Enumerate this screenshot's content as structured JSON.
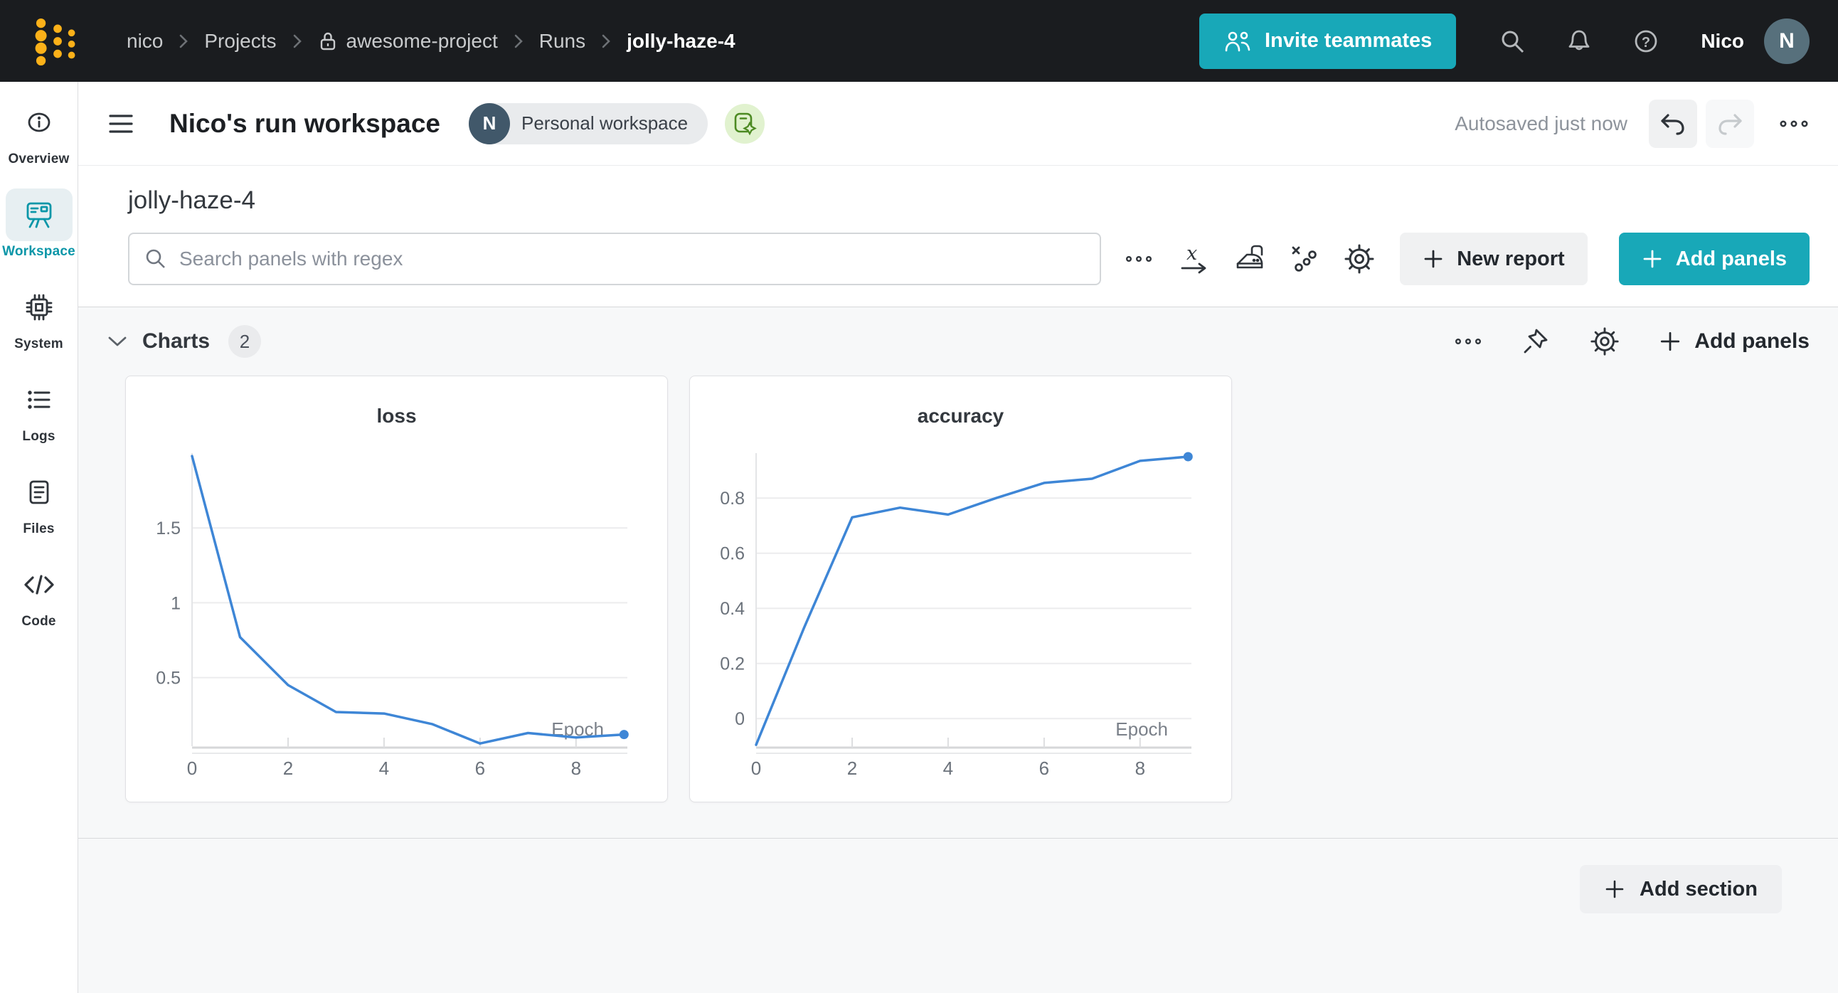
{
  "topbar": {
    "breadcrumb": {
      "items": [
        "nico",
        "Projects",
        "awesome-project",
        "Runs",
        "jolly-haze-4"
      ]
    },
    "invite_button": "Invite teammates",
    "username": "Nico",
    "avatar_initial": "N"
  },
  "sidebar": {
    "items": [
      {
        "label": "Overview"
      },
      {
        "label": "Workspace"
      },
      {
        "label": "System"
      },
      {
        "label": "Logs"
      },
      {
        "label": "Files"
      },
      {
        "label": "Code"
      }
    ]
  },
  "header": {
    "title": "Nico's run workspace",
    "workspace_badge": {
      "initial": "N",
      "label": "Personal workspace"
    },
    "autosave_status": "Autosaved just now"
  },
  "run_page": {
    "run_title": "jolly-haze-4",
    "search_placeholder": "Search panels with regex",
    "new_report_button": "New report",
    "add_panels_button": "Add panels"
  },
  "charts_section": {
    "label": "Charts",
    "count": "2",
    "add_panels_button": "Add panels"
  },
  "bottom": {
    "add_section_button": "Add section"
  },
  "colors": {
    "topbar_bg": "#1a1c1f",
    "teal": "#18a8b8",
    "active_teal": "#0b96a8",
    "line_blue": "#3e86d6",
    "logo_yellow": "#fcb119",
    "section_bg": "#f7f8f9"
  },
  "chart_data": [
    {
      "type": "line",
      "title": "loss",
      "xlabel": "Epoch",
      "x": [
        0,
        1,
        2,
        3,
        4,
        5,
        6,
        7,
        8,
        9
      ],
      "values": [
        1.98,
        0.77,
        0.45,
        0.27,
        0.26,
        0.19,
        0.06,
        0.13,
        0.1,
        0.12
      ],
      "xticks": [
        0,
        2,
        4,
        6,
        8
      ],
      "yticks": [
        0.5,
        1,
        1.5
      ],
      "xlim": [
        0,
        9.07
      ],
      "ylim": [
        0.042,
        2.0
      ],
      "grid": true,
      "legend": "none",
      "color": "#3e86d6"
    },
    {
      "type": "line",
      "title": "accuracy",
      "xlabel": "Epoch",
      "x": [
        0,
        1,
        2,
        3,
        4,
        5,
        6,
        7,
        8,
        9
      ],
      "values": [
        -0.095,
        0.33,
        0.73,
        0.765,
        0.74,
        0.8,
        0.855,
        0.87,
        0.935,
        0.95
      ],
      "xticks": [
        0,
        2,
        4,
        6,
        8
      ],
      "yticks": [
        0,
        0.2,
        0.4,
        0.6,
        0.8
      ],
      "xlim": [
        0,
        9.07
      ],
      "ylim": [
        -0.1,
        0.963
      ],
      "grid": true,
      "legend": "none",
      "color": "#3e86d6"
    }
  ]
}
